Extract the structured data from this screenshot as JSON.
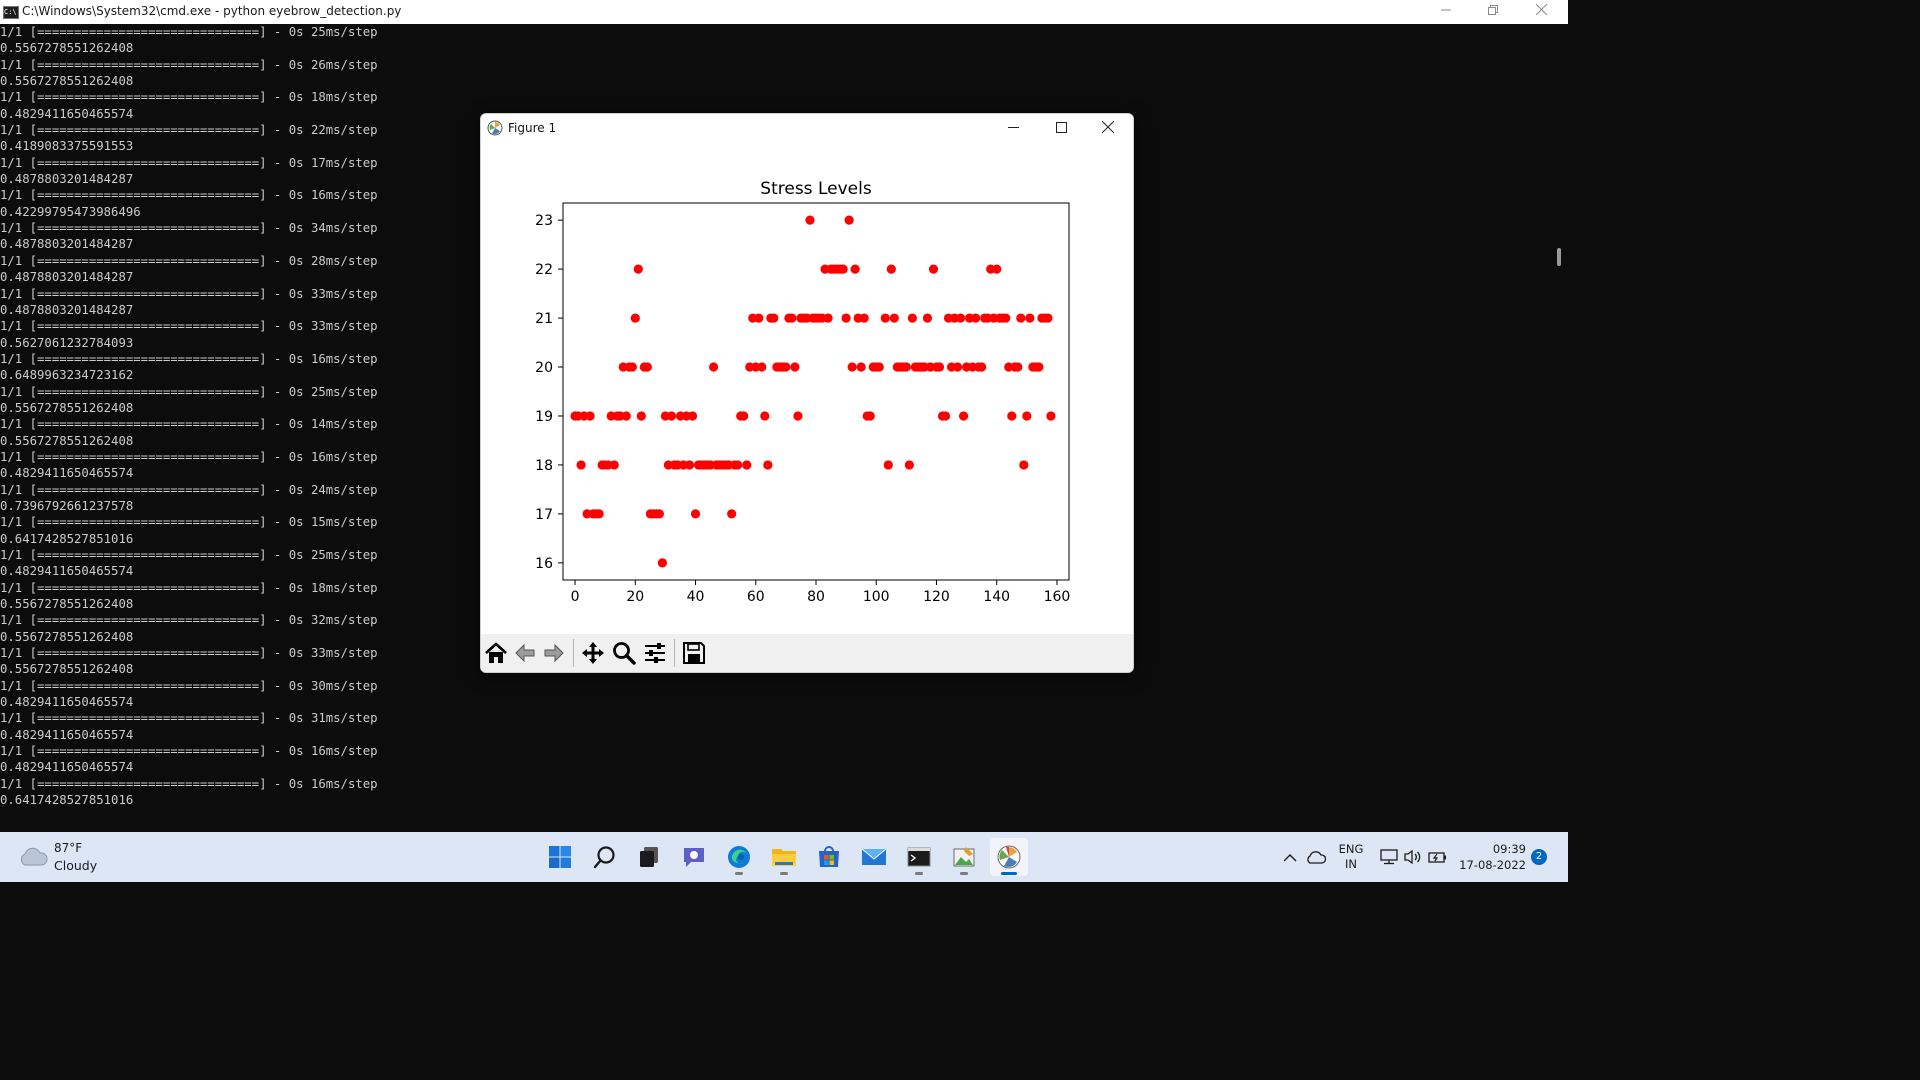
{
  "cmd_window": {
    "title": "C:\\Windows\\System32\\cmd.exe - python  eyebrow_detection.py",
    "icon": "cmd-icon",
    "controls": [
      "minimize",
      "restore",
      "close"
    ],
    "lines": [
      "1/1 [==============================] - 0s 25ms/step",
      "0.5567278551262408",
      "1/1 [==============================] - 0s 26ms/step",
      "0.5567278551262408",
      "1/1 [==============================] - 0s 18ms/step",
      "0.4829411650465574",
      "1/1 [==============================] - 0s 22ms/step",
      "0.4189083375591553",
      "1/1 [==============================] - 0s 17ms/step",
      "0.4878803201484287",
      "1/1 [==============================] - 0s 16ms/step",
      "0.42299795473986496",
      "1/1 [==============================] - 0s 34ms/step",
      "0.4878803201484287",
      "1/1 [==============================] - 0s 28ms/step",
      "0.4878803201484287",
      "1/1 [==============================] - 0s 33ms/step",
      "0.4878803201484287",
      "1/1 [==============================] - 0s 33ms/step",
      "0.5627061232784093",
      "1/1 [==============================] - 0s 16ms/step",
      "0.6489963234723162",
      "1/1 [==============================] - 0s 25ms/step",
      "0.5567278551262408",
      "1/1 [==============================] - 0s 14ms/step",
      "0.5567278551262408",
      "1/1 [==============================] - 0s 16ms/step",
      "0.4829411650465574",
      "1/1 [==============================] - 0s 24ms/step",
      "0.7396792661237578",
      "1/1 [==============================] - 0s 15ms/step",
      "0.6417428527851016",
      "1/1 [==============================] - 0s 25ms/step",
      "0.4829411650465574",
      "1/1 [==============================] - 0s 18ms/step",
      "0.5567278551262408",
      "1/1 [==============================] - 0s 32ms/step",
      "0.5567278551262408",
      "1/1 [==============================] - 0s 33ms/step",
      "0.5567278551262408",
      "1/1 [==============================] - 0s 30ms/step",
      "0.4829411650465574",
      "1/1 [==============================] - 0s 31ms/step",
      "0.4829411650465574",
      "1/1 [==============================] - 0s 16ms/step",
      "0.4829411650465574",
      "1/1 [==============================] - 0s 16ms/step",
      "0.6417428527851016"
    ]
  },
  "figure_window": {
    "title": "Figure 1",
    "icon": "matplotlib-icon",
    "controls": [
      "minimize",
      "maximize",
      "close"
    ],
    "toolbar": [
      "home-icon",
      "back-icon",
      "forward-icon",
      "pan-icon",
      "zoom-icon",
      "configure-subplots-icon",
      "save-icon"
    ]
  },
  "chart_data": {
    "type": "scatter",
    "title": "Stress Levels",
    "xlabel": "",
    "ylabel": "",
    "xlim": [
      -4,
      164
    ],
    "ylim": [
      15.65,
      23.35
    ],
    "xticks": [
      0,
      20,
      40,
      60,
      80,
      100,
      120,
      140,
      160
    ],
    "yticks": [
      16,
      17,
      18,
      19,
      20,
      21,
      22,
      23
    ],
    "grid": false,
    "marker_color": "#ff0000",
    "series": [
      {
        "name": "stress",
        "points": [
          [
            0,
            19
          ],
          [
            1,
            19
          ],
          [
            2,
            18
          ],
          [
            3,
            19
          ],
          [
            4,
            17
          ],
          [
            5,
            19
          ],
          [
            6,
            17
          ],
          [
            7,
            17
          ],
          [
            8,
            17
          ],
          [
            9,
            18
          ],
          [
            10,
            18
          ],
          [
            11,
            18
          ],
          [
            12,
            19
          ],
          [
            13,
            18
          ],
          [
            14,
            19
          ],
          [
            15,
            19
          ],
          [
            16,
            20
          ],
          [
            17,
            19
          ],
          [
            18,
            20
          ],
          [
            19,
            20
          ],
          [
            20,
            21
          ],
          [
            21,
            22
          ],
          [
            22,
            19
          ],
          [
            23,
            20
          ],
          [
            24,
            20
          ],
          [
            25,
            17
          ],
          [
            26,
            17
          ],
          [
            27,
            17
          ],
          [
            28,
            17
          ],
          [
            29,
            16
          ],
          [
            30,
            19
          ],
          [
            31,
            18
          ],
          [
            32,
            19
          ],
          [
            33,
            18
          ],
          [
            34,
            18
          ],
          [
            35,
            19
          ],
          [
            36,
            18
          ],
          [
            37,
            19
          ],
          [
            38,
            18
          ],
          [
            39,
            19
          ],
          [
            40,
            17
          ],
          [
            41,
            18
          ],
          [
            42,
            18
          ],
          [
            43,
            18
          ],
          [
            44,
            18
          ],
          [
            45,
            18
          ],
          [
            46,
            20
          ],
          [
            47,
            18
          ],
          [
            48,
            18
          ],
          [
            49,
            18
          ],
          [
            50,
            18
          ],
          [
            51,
            18
          ],
          [
            52,
            17
          ],
          [
            53,
            18
          ],
          [
            54,
            18
          ],
          [
            55,
            19
          ],
          [
            56,
            19
          ],
          [
            57,
            18
          ],
          [
            58,
            20
          ],
          [
            59,
            21
          ],
          [
            60,
            20
          ],
          [
            61,
            21
          ],
          [
            62,
            20
          ],
          [
            63,
            19
          ],
          [
            64,
            18
          ],
          [
            65,
            21
          ],
          [
            66,
            21
          ],
          [
            67,
            20
          ],
          [
            68,
            20
          ],
          [
            69,
            20
          ],
          [
            70,
            20
          ],
          [
            71,
            21
          ],
          [
            72,
            21
          ],
          [
            73,
            20
          ],
          [
            74,
            19
          ],
          [
            75,
            21
          ],
          [
            76,
            21
          ],
          [
            77,
            21
          ],
          [
            78,
            23
          ],
          [
            79,
            21
          ],
          [
            80,
            21
          ],
          [
            81,
            21
          ],
          [
            82,
            21
          ],
          [
            83,
            22
          ],
          [
            84,
            21
          ],
          [
            85,
            22
          ],
          [
            86,
            22
          ],
          [
            87,
            22
          ],
          [
            88,
            22
          ],
          [
            89,
            22
          ],
          [
            90,
            21
          ],
          [
            91,
            23
          ],
          [
            92,
            20
          ],
          [
            93,
            22
          ],
          [
            94,
            21
          ],
          [
            95,
            20
          ],
          [
            96,
            21
          ],
          [
            97,
            19
          ],
          [
            98,
            19
          ],
          [
            99,
            20
          ],
          [
            100,
            20
          ],
          [
            101,
            20
          ],
          [
            103,
            21
          ],
          [
            104,
            18
          ],
          [
            105,
            22
          ],
          [
            106,
            21
          ],
          [
            107,
            20
          ],
          [
            108,
            20
          ],
          [
            109,
            20
          ],
          [
            110,
            20
          ],
          [
            111,
            18
          ],
          [
            112,
            21
          ],
          [
            113,
            20
          ],
          [
            114,
            20
          ],
          [
            115,
            20
          ],
          [
            116,
            20
          ],
          [
            117,
            21
          ],
          [
            118,
            20
          ],
          [
            119,
            22
          ],
          [
            120,
            20
          ],
          [
            121,
            20
          ],
          [
            122,
            19
          ],
          [
            123,
            19
          ],
          [
            124,
            21
          ],
          [
            125,
            20
          ],
          [
            126,
            21
          ],
          [
            127,
            20
          ],
          [
            128,
            21
          ],
          [
            129,
            19
          ],
          [
            130,
            20
          ],
          [
            131,
            21
          ],
          [
            132,
            20
          ],
          [
            133,
            21
          ],
          [
            134,
            20
          ],
          [
            135,
            20
          ],
          [
            136,
            21
          ],
          [
            137,
            21
          ],
          [
            138,
            22
          ],
          [
            139,
            21
          ],
          [
            140,
            22
          ],
          [
            141,
            21
          ],
          [
            142,
            21
          ],
          [
            143,
            21
          ],
          [
            144,
            20
          ],
          [
            145,
            19
          ],
          [
            146,
            20
          ],
          [
            147,
            20
          ],
          [
            148,
            21
          ],
          [
            149,
            18
          ],
          [
            150,
            19
          ],
          [
            151,
            21
          ],
          [
            152,
            20
          ],
          [
            153,
            20
          ],
          [
            154,
            20
          ],
          [
            155,
            21
          ],
          [
            156,
            21
          ],
          [
            157,
            21
          ],
          [
            158,
            19
          ]
        ]
      }
    ]
  },
  "taskbar": {
    "weather": {
      "temp": "87°F",
      "condition": "Cloudy"
    },
    "apps": [
      "start-icon",
      "search-icon",
      "task-view-icon",
      "chat-icon",
      "edge-icon",
      "file-explorer-icon",
      "store-icon",
      "mail-icon",
      "terminal-icon",
      "image-editor-icon",
      "matplotlib-icon"
    ],
    "language": {
      "line1": "ENG",
      "line2": "IN"
    },
    "clock": {
      "time": "09:39",
      "date": "17-08-2022"
    },
    "notifications": "2"
  }
}
